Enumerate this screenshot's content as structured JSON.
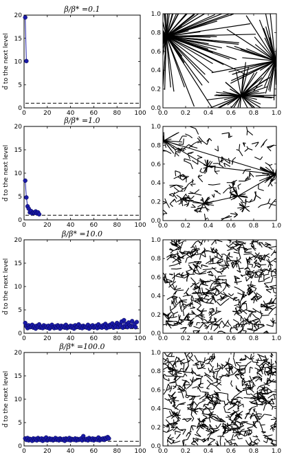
{
  "chart_data": [
    {
      "type": "line",
      "title": "β/β* =0.1",
      "ylabel": "d̄ to the next level",
      "xlim": [
        0,
        100
      ],
      "ylim": [
        0,
        20
      ],
      "xticks": [
        0,
        20,
        40,
        60,
        80,
        100
      ],
      "yticks": [
        0,
        5,
        10,
        15,
        20
      ],
      "series": [
        {
          "color": "#1a1aa8",
          "x": [
            1,
            2
          ],
          "y": [
            19.5,
            10.1
          ]
        }
      ],
      "reference_line": {
        "y": 1.0,
        "style": "dashed"
      }
    },
    {
      "type": "line",
      "title": "β/β* =1.0",
      "ylabel": "d̄ to the next level",
      "xlim": [
        0,
        100
      ],
      "ylim": [
        0,
        20
      ],
      "xticks": [
        0,
        20,
        40,
        60,
        80,
        100
      ],
      "yticks": [
        0,
        5,
        10,
        15,
        20
      ],
      "series": [
        {
          "color": "#1a1aa8",
          "x": [
            1,
            2,
            3,
            4,
            5,
            6,
            7,
            8,
            9,
            10,
            11,
            12,
            13
          ],
          "y": [
            8.4,
            4.8,
            2.9,
            2.4,
            1.6,
            1.9,
            1.4,
            1.6,
            1.5,
            1.8,
            1.4,
            1.6,
            1.2
          ]
        }
      ],
      "reference_line": {
        "y": 1.0,
        "style": "dashed"
      }
    },
    {
      "type": "line",
      "title": "β/β* =10.0",
      "ylabel": "d̄ to the next level",
      "xlim": [
        0,
        100
      ],
      "ylim": [
        0,
        20
      ],
      "xticks": [
        0,
        20,
        40,
        60,
        80,
        100
      ],
      "yticks": [
        0,
        5,
        10,
        15,
        20
      ],
      "series": [
        {
          "color": "#1a1aa8",
          "x": [
            1,
            2,
            3,
            4,
            5,
            6,
            7,
            8,
            9,
            10,
            11,
            12,
            13,
            14,
            15,
            16,
            17,
            18,
            19,
            20,
            21,
            22,
            23,
            24,
            25,
            26,
            27,
            28,
            29,
            30,
            31,
            32,
            33,
            34,
            35,
            36,
            37,
            38,
            39,
            40,
            41,
            42,
            43,
            44,
            45,
            46,
            47,
            48,
            49,
            50,
            51,
            52,
            53,
            54,
            55,
            56,
            57,
            58,
            59,
            60,
            61,
            62,
            63,
            64,
            65,
            66,
            67,
            68,
            69,
            70,
            71,
            72,
            73,
            74,
            75,
            76,
            77,
            78,
            79,
            80,
            81,
            82,
            83,
            84,
            85,
            86,
            87,
            88,
            89,
            90,
            91,
            92,
            93,
            94,
            95,
            96,
            97
          ],
          "y": [
            2.2,
            1.5,
            1.1,
            1.7,
            1.3,
            1.4,
            1.8,
            1.2,
            1.5,
            1.0,
            1.6,
            1.3,
            1.9,
            1.2,
            1.4,
            1.1,
            1.7,
            1.3,
            1.5,
            1.2,
            1.6,
            1.0,
            1.4,
            1.8,
            1.3,
            1.1,
            1.5,
            1.2,
            1.7,
            1.4,
            1.0,
            1.6,
            1.3,
            1.5,
            1.2,
            1.8,
            1.1,
            1.4,
            1.3,
            1.6,
            1.2,
            1.5,
            1.0,
            1.7,
            1.3,
            1.4,
            1.9,
            1.2,
            1.5,
            1.1,
            1.6,
            1.3,
            1.4,
            1.2,
            1.8,
            1.0,
            1.5,
            1.3,
            1.7,
            1.2,
            1.4,
            1.6,
            1.1,
            1.9,
            1.3,
            1.5,
            1.2,
            1.7,
            1.4,
            2.0,
            1.1,
            1.6,
            1.3,
            1.8,
            1.5,
            2.1,
            1.2,
            1.7,
            1.4,
            2.2,
            1.3,
            1.9,
            1.6,
            2.5,
            1.2,
            2.8,
            1.5,
            2.0,
            1.3,
            2.3,
            1.7,
            1.4,
            2.6,
            1.5,
            2.0,
            1.3,
            2.4
          ]
        }
      ],
      "reference_line": {
        "y": 1.0,
        "style": "dashed"
      }
    },
    {
      "type": "line",
      "title": "β/β* =100.0",
      "ylabel": "d̄ to the next level",
      "xlim": [
        0,
        100
      ],
      "ylim": [
        0,
        20
      ],
      "xticks": [
        0,
        20,
        40,
        60,
        80,
        100
      ],
      "yticks": [
        0,
        5,
        10,
        15,
        20
      ],
      "series": [
        {
          "color": "#1a1aa8",
          "x": [
            1,
            2,
            3,
            4,
            5,
            6,
            7,
            8,
            9,
            10,
            11,
            12,
            13,
            14,
            15,
            16,
            17,
            18,
            19,
            20,
            21,
            22,
            23,
            24,
            25,
            26,
            27,
            28,
            29,
            30,
            31,
            32,
            33,
            34,
            35,
            36,
            37,
            38,
            39,
            40,
            41,
            42,
            43,
            44,
            45,
            46,
            47,
            48,
            49,
            50,
            51,
            52,
            53,
            54,
            55,
            56,
            57,
            58,
            59,
            60,
            61,
            62,
            63,
            64,
            65,
            66,
            67,
            68,
            69,
            70,
            71,
            72,
            73
          ],
          "y": [
            1.6,
            1.3,
            1.7,
            1.2,
            1.5,
            1.4,
            1.1,
            1.6,
            1.3,
            1.5,
            1.2,
            1.7,
            1.4,
            1.3,
            1.6,
            1.1,
            1.5,
            1.3,
            1.8,
            1.2,
            1.4,
            1.6,
            1.3,
            1.5,
            1.2,
            1.4,
            1.7,
            1.3,
            1.5,
            1.2,
            1.6,
            1.4,
            1.3,
            1.5,
            1.1,
            1.6,
            1.4,
            1.3,
            1.7,
            1.2,
            1.5,
            1.4,
            1.3,
            1.6,
            1.2,
            1.5,
            1.3,
            1.4,
            1.6,
            1.2,
            2.1,
            1.4,
            1.3,
            1.5,
            1.2,
            1.7,
            1.4,
            1.3,
            1.6,
            1.2,
            1.5,
            1.4,
            1.3,
            1.8,
            1.2,
            1.5,
            1.4,
            1.6,
            1.3,
            1.7,
            1.5,
            1.9,
            1.6
          ]
        }
      ],
      "reference_line": {
        "y": 1.0,
        "style": "dashed"
      }
    },
    {
      "type": "scatter",
      "note_type": "line-segments",
      "xlim": [
        0,
        1
      ],
      "ylim": [
        0,
        1
      ],
      "xticks": [
        0.0,
        0.2,
        0.4,
        0.6,
        0.8,
        1.0
      ],
      "yticks": [
        0.0,
        0.2,
        0.4,
        0.6,
        0.8,
        1.0
      ],
      "hubs": [
        {
          "x": 0.03,
          "y": 0.76,
          "spokes": 110,
          "reach": 0.45
        },
        {
          "x": 0.99,
          "y": 0.5,
          "spokes": 70,
          "reach": 0.3
        },
        {
          "x": 0.69,
          "y": 0.13,
          "spokes": 45,
          "reach": 0.2
        }
      ],
      "branch_count": 0
    },
    {
      "type": "scatter",
      "note_type": "line-segments",
      "xlim": [
        0,
        1
      ],
      "ylim": [
        0,
        1
      ],
      "xticks": [
        0.0,
        0.2,
        0.4,
        0.6,
        0.8,
        1.0
      ],
      "yticks": [
        0.0,
        0.2,
        0.4,
        0.6,
        0.8,
        1.0
      ],
      "hubs": [
        {
          "x": 0.01,
          "y": 0.85,
          "spokes": 26,
          "reach": 0.17
        },
        {
          "x": 0.99,
          "y": 0.49,
          "spokes": 22,
          "reach": 0.18
        },
        {
          "x": 0.39,
          "y": 0.58,
          "spokes": 12,
          "reach": 0.09
        },
        {
          "x": 0.36,
          "y": 0.18,
          "spokes": 16,
          "reach": 0.1
        },
        {
          "x": 0.66,
          "y": 0.26,
          "spokes": 14,
          "reach": 0.09
        },
        {
          "x": 0.72,
          "y": 0.14,
          "spokes": 12,
          "reach": 0.07
        },
        {
          "x": 0.17,
          "y": 0.23,
          "spokes": 8,
          "reach": 0.07
        }
      ],
      "branch_count": 90
    },
    {
      "type": "scatter",
      "note_type": "line-segments",
      "xlim": [
        0,
        1
      ],
      "ylim": [
        0,
        1
      ],
      "xticks": [
        0.0,
        0.2,
        0.4,
        0.6,
        0.8,
        1.0
      ],
      "yticks": [
        0.0,
        0.2,
        0.4,
        0.6,
        0.8,
        1.0
      ],
      "hubs": [
        {
          "x": 0.65,
          "y": 0.23,
          "spokes": 8,
          "reach": 0.05
        }
      ],
      "branch_count": 300
    },
    {
      "type": "scatter",
      "note_type": "line-segments",
      "xlim": [
        0,
        1
      ],
      "ylim": [
        0,
        1
      ],
      "xticks": [
        0.0,
        0.2,
        0.4,
        0.6,
        0.8,
        1.0
      ],
      "yticks": [
        0.0,
        0.2,
        0.4,
        0.6,
        0.8,
        1.0
      ],
      "hubs": [],
      "branch_count": 320
    }
  ]
}
